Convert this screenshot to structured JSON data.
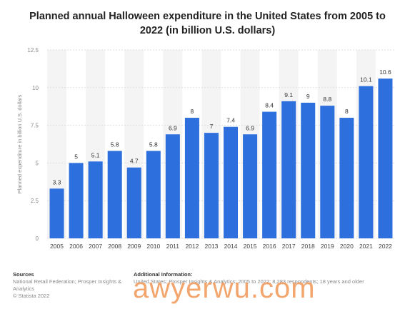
{
  "chart_data": {
    "type": "bar",
    "title": "Planned annual Halloween expenditure in the United States from 2005 to 2022 (in billion U.S. dollars)",
    "ylabel": "Planned expenditure in billion U.S. dollars",
    "xlabel": "",
    "categories": [
      "2005",
      "2006",
      "2007",
      "2008",
      "2009",
      "2010",
      "2011",
      "2012",
      "2013",
      "2014",
      "2015",
      "2016",
      "2017",
      "2018",
      "2019",
      "2020",
      "2021",
      "2022"
    ],
    "values": [
      3.3,
      5,
      5.1,
      5.8,
      4.7,
      5.8,
      6.9,
      8,
      7,
      7.4,
      6.9,
      8.4,
      9.1,
      9,
      8.8,
      8,
      10.1,
      10.6
    ],
    "ylim": [
      0,
      12.5
    ],
    "yticks": [
      "0",
      "2.5",
      "5",
      "7.5",
      "10",
      "12.5"
    ],
    "grid": true,
    "bar_color": "#2d6fdc"
  },
  "footer": {
    "sources_heading": "Sources",
    "sources_text": "National Retail Federation; Prosper Insights & Analytics",
    "copyright": "© Statista 2022",
    "additional_heading": "Additional Information:",
    "additional_text": "United States; Prosper Insights & Analytics; 2005 to 2022; 8,283 respondents; 18 years and older"
  },
  "watermark": "awyerwu.com",
  "colors": {
    "watermark": "#f0883e",
    "background": "#ffffff"
  }
}
